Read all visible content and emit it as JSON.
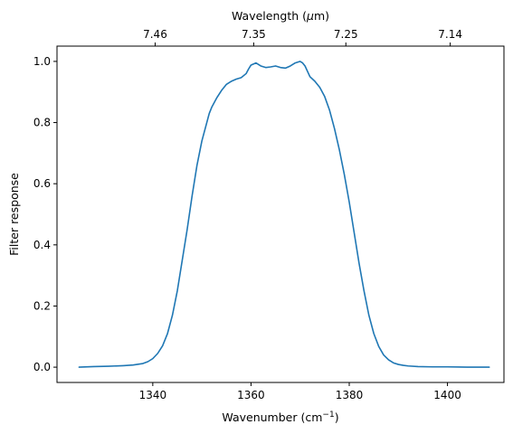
{
  "chart_data": {
    "type": "line",
    "title": "",
    "xlabel": "Wavenumber (cm",
    "xlabel_sup": "−1",
    "xlabel_tail": ")",
    "ylabel": "Filter response",
    "top_xlabel": "Wavelength (",
    "top_xlabel_symbol": "μ",
    "top_xlabel_tail": "m)",
    "xlim": [
      1320.5,
      1411.5
    ],
    "ylim": [
      -0.05,
      1.05
    ],
    "x_ticks": [
      1340,
      1360,
      1380,
      1400
    ],
    "y_ticks": [
      0.0,
      0.2,
      0.4,
      0.6,
      0.8,
      1.0
    ],
    "x_tick_labels": [
      "1340",
      "1360",
      "1380",
      "1400"
    ],
    "y_tick_labels": [
      "0.0",
      "0.2",
      "0.4",
      "0.6",
      "0.8",
      "1.0"
    ],
    "top_ticks": [
      {
        "label": "7.46",
        "wavelength_um": 7.46
      },
      {
        "label": "7.35",
        "wavelength_um": 7.35
      },
      {
        "label": "7.25",
        "wavelength_um": 7.25
      },
      {
        "label": "7.14",
        "wavelength_um": 7.14
      }
    ],
    "grid": false,
    "series": [
      {
        "color": "#1f77b4",
        "x": [
          1325,
          1328,
          1331,
          1334,
          1336,
          1338,
          1339,
          1340,
          1341,
          1342,
          1343,
          1344,
          1345,
          1346,
          1347,
          1348,
          1349,
          1350,
          1351,
          1351.5,
          1352,
          1353,
          1354,
          1355,
          1356,
          1357,
          1358,
          1359,
          1359.5,
          1360,
          1361,
          1362,
          1363,
          1364,
          1365,
          1366,
          1367,
          1368,
          1369,
          1370,
          1370.5,
          1371,
          1372,
          1373,
          1374,
          1375,
          1376,
          1377,
          1378,
          1379,
          1380,
          1381,
          1382,
          1383,
          1384,
          1385,
          1386,
          1387,
          1388,
          1389,
          1390,
          1391,
          1392,
          1394,
          1397,
          1400,
          1404,
          1408.5
        ],
        "y": [
          0.0,
          0.002,
          0.003,
          0.005,
          0.007,
          0.012,
          0.018,
          0.028,
          0.045,
          0.07,
          0.11,
          0.17,
          0.25,
          0.35,
          0.45,
          0.56,
          0.66,
          0.74,
          0.8,
          0.83,
          0.85,
          0.88,
          0.905,
          0.925,
          0.935,
          0.942,
          0.947,
          0.96,
          0.975,
          0.988,
          0.995,
          0.985,
          0.98,
          0.982,
          0.985,
          0.98,
          0.978,
          0.985,
          0.995,
          1.0,
          0.995,
          0.985,
          0.95,
          0.935,
          0.915,
          0.885,
          0.84,
          0.78,
          0.71,
          0.63,
          0.54,
          0.44,
          0.34,
          0.25,
          0.17,
          0.11,
          0.068,
          0.04,
          0.024,
          0.014,
          0.009,
          0.006,
          0.004,
          0.002,
          0.001,
          0.001,
          0.0,
          0.0
        ]
      }
    ]
  }
}
